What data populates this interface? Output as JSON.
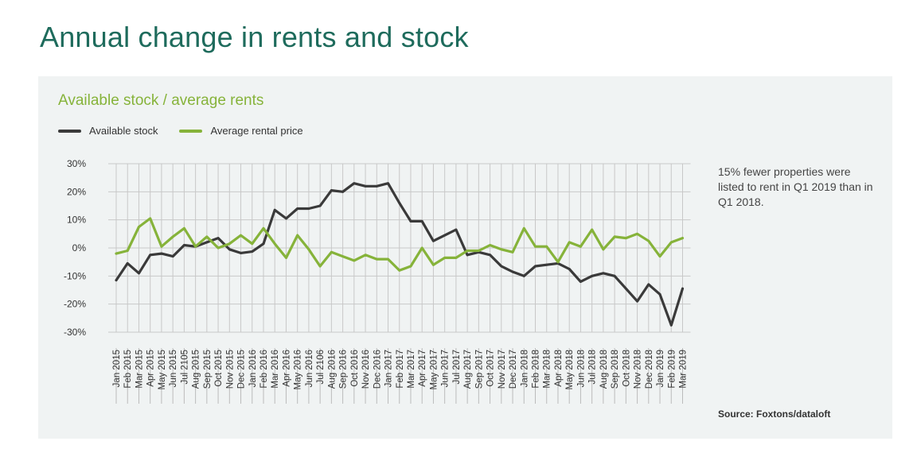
{
  "page": {
    "title": "Annual change in rents and stock"
  },
  "note": "15% fewer properties were listed to rent in Q1 2019 than in Q1 2018.",
  "source": "Source: Foxtons/dataloft",
  "colors": {
    "title": "#1e6b5c",
    "panel": "#f0f3f3",
    "stock": "#3a3a3a",
    "rent": "#86b33a",
    "grid": "#c8c8c8"
  },
  "chart_data": {
    "type": "line",
    "title": "Available stock / average rents",
    "legend_position": "top-left",
    "grid": true,
    "ylim": [
      -30,
      30
    ],
    "yticks": [
      30,
      20,
      10,
      0,
      -10,
      -20,
      -30
    ],
    "ytick_labels": [
      "30%",
      "20%",
      "10%",
      "0%",
      "-10%",
      "-20%",
      "-30%"
    ],
    "categories": [
      "Jan 2015",
      "Feb 2015",
      "Mar 2015",
      "Apr 2015",
      "May 2015",
      "Jun 2015",
      "Jul 2105",
      "Aug 2015",
      "Sep 2015",
      "Oct 2015",
      "Nov 2015",
      "Dec 2015",
      "Jan 2016",
      "Feb 2016",
      "Mar 2016",
      "Apr 2016",
      "May 2016",
      "Jun 2016",
      "Jul 2106",
      "Aug 2016",
      "Sep 2016",
      "Oct 2016",
      "Nov 2016",
      "Dec 2016",
      "Jan 2017",
      "Feb 2017",
      "Mar 2017",
      "Apr 2017",
      "May 2017",
      "Jun 2017",
      "Jul 2017",
      "Aug 2017",
      "Sep 2017",
      "Oct 2017",
      "Nov 2017",
      "Dec 2017",
      "Jan 2018",
      "Feb 2018",
      "Mar 2018",
      "Apr 2018",
      "May 2018",
      "Jun 2018",
      "Jul 2018",
      "Aug 2018",
      "Sep 2018",
      "Oct 2018",
      "Nov 2018",
      "Dec 2018",
      "Jan 2019",
      "Feb 2019",
      "Mar 2019"
    ],
    "series": [
      {
        "name": "Available stock",
        "color": "#3a3a3a",
        "values": [
          -11.5,
          -5.5,
          -9,
          -2.5,
          -2,
          -3,
          1,
          0.5,
          2,
          3.5,
          -0.5,
          -1.8,
          -1.3,
          1.5,
          13.5,
          10.5,
          14,
          14,
          15,
          20.5,
          20,
          23,
          22,
          22,
          23,
          16,
          9.5,
          9.5,
          2.5,
          4.5,
          6.5,
          -2.5,
          -1.5,
          -2.5,
          -6.5,
          -8.5,
          -10,
          -6.5,
          -6,
          -5.5,
          -7.5,
          -12,
          -10,
          -9,
          -10,
          -14.5,
          -19,
          -13,
          -16.5,
          -27.5,
          -14.5
        ]
      },
      {
        "name": "Average rental price",
        "color": "#86b33a",
        "values": [
          -2,
          -1,
          7.5,
          10.5,
          0.5,
          4,
          7,
          0.5,
          4,
          0,
          1.5,
          4.5,
          1.5,
          7,
          1.5,
          -3.5,
          4.5,
          -0.5,
          -6.5,
          -1.5,
          -3,
          -4.5,
          -2.5,
          -4,
          -4,
          -8,
          -6.5,
          0,
          -6,
          -3.5,
          -3.5,
          -1,
          -1,
          1,
          -0.5,
          -1.5,
          7,
          0.5,
          0.5,
          -5,
          2,
          0.5,
          6.5,
          -0.5,
          4,
          3.5,
          5,
          2.5,
          -3,
          2,
          3.5
        ]
      }
    ]
  }
}
